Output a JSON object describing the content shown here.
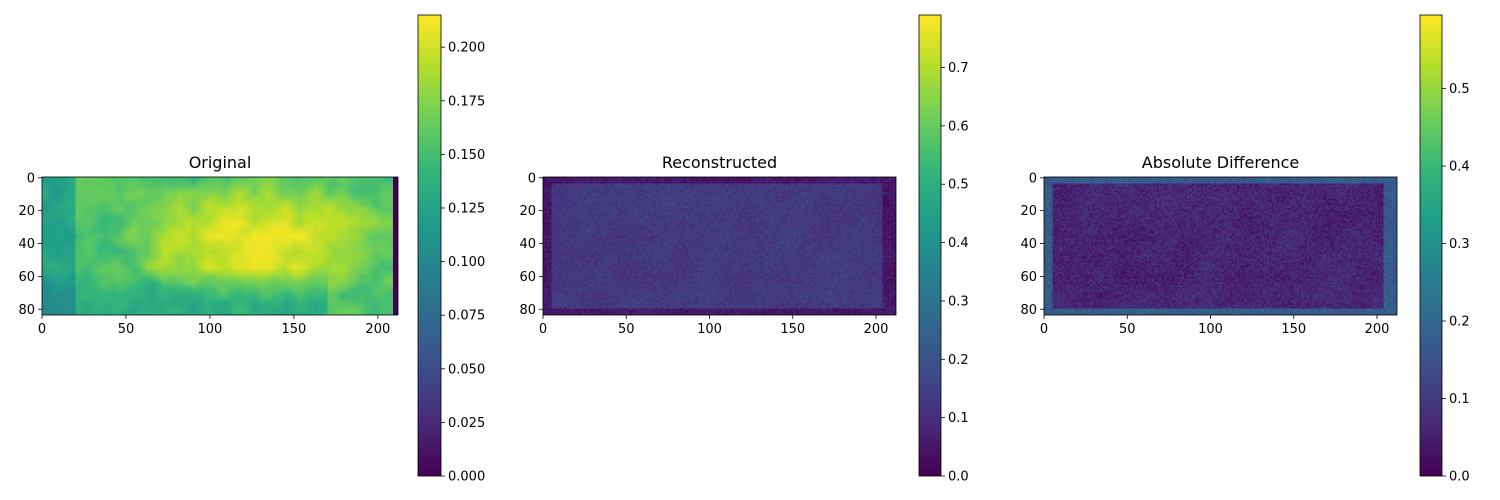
{
  "chart_data": [
    {
      "type": "heatmap",
      "title": "Original",
      "colormap": "viridis",
      "image_width": 212,
      "image_height": 84,
      "xlim": [
        0,
        212
      ],
      "ylim": [
        84,
        0
      ],
      "x_ticks": [
        0,
        50,
        100,
        150,
        200
      ],
      "y_ticks": [
        0,
        20,
        40,
        60,
        80
      ],
      "colorbar": {
        "min": 0.0,
        "max": 0.215,
        "ticks": [
          "0.000",
          "0.025",
          "0.050",
          "0.075",
          "0.100",
          "0.125",
          "0.150",
          "0.175",
          "0.200"
        ]
      },
      "field": {
        "base": 0.17,
        "center": [
          130,
          38
        ],
        "center_value": 0.205,
        "border_value": 0.15,
        "right_strip_value": 0.0
      }
    },
    {
      "type": "heatmap",
      "title": "Reconstructed",
      "colormap": "viridis",
      "image_width": 212,
      "image_height": 84,
      "xlim": [
        0,
        212
      ],
      "ylim": [
        84,
        0
      ],
      "x_ticks": [
        0,
        50,
        100,
        150,
        200
      ],
      "y_ticks": [
        0,
        20,
        40,
        60,
        80
      ],
      "colorbar": {
        "min": 0.0,
        "max": 0.79,
        "ticks": [
          "0.0",
          "0.1",
          "0.2",
          "0.3",
          "0.4",
          "0.5",
          "0.6",
          "0.7"
        ]
      },
      "field": {
        "base": 0.13,
        "edge_value": 0.05,
        "texture": 0.03
      }
    },
    {
      "type": "heatmap",
      "title": "Absolute Difference",
      "colormap": "viridis",
      "image_width": 212,
      "image_height": 84,
      "xlim": [
        0,
        212
      ],
      "ylim": [
        84,
        0
      ],
      "x_ticks": [
        0,
        50,
        100,
        150,
        200
      ],
      "y_ticks": [
        0,
        20,
        40,
        60,
        80
      ],
      "colorbar": {
        "min": 0.0,
        "max": 0.595,
        "ticks": [
          "0.0",
          "0.1",
          "0.2",
          "0.3",
          "0.4",
          "0.5"
        ]
      },
      "field": {
        "base": 0.06,
        "edge_value": 0.17,
        "texture": 0.03
      }
    }
  ]
}
